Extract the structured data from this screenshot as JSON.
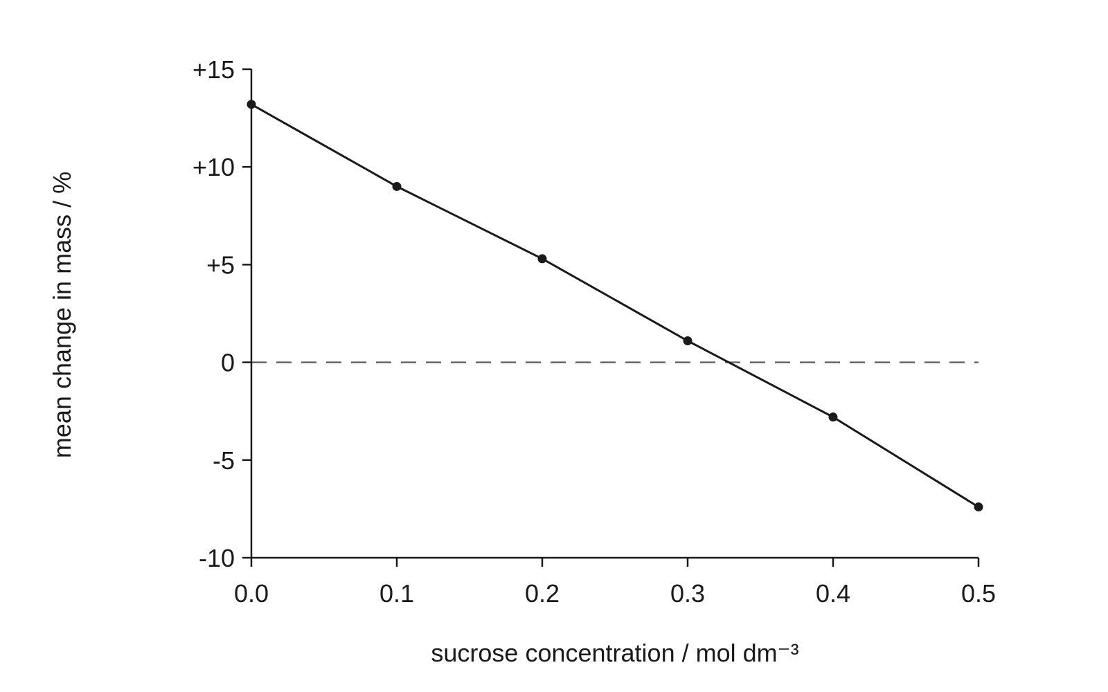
{
  "chart_data": {
    "type": "line",
    "title": "",
    "xlabel": "sucrose concentration / mol dm⁻³",
    "ylabel": "mean change in mass / %",
    "xlim": [
      0.0,
      0.5
    ],
    "ylim": [
      -10,
      15
    ],
    "x_ticks": [
      0.0,
      0.1,
      0.2,
      0.3,
      0.4,
      0.5
    ],
    "x_tick_labels": [
      "0.0",
      "0.1",
      "0.2",
      "0.3",
      "0.4",
      "0.5"
    ],
    "y_ticks": [
      15,
      10,
      5,
      0,
      -5,
      -10
    ],
    "y_tick_labels": [
      "+15",
      "+10",
      "+5",
      "0",
      "-5",
      "-10"
    ],
    "reference_line": {
      "y": 0,
      "style": "dashed",
      "color": "#666666"
    },
    "grid": false,
    "legend": "none",
    "line_color": "#1a1a1a",
    "series": [
      {
        "x": [
          0.0,
          0.1,
          0.2,
          0.3,
          0.4,
          0.5
        ],
        "values": [
          13.2,
          9.0,
          5.3,
          1.1,
          -2.8,
          -7.4
        ]
      }
    ]
  }
}
